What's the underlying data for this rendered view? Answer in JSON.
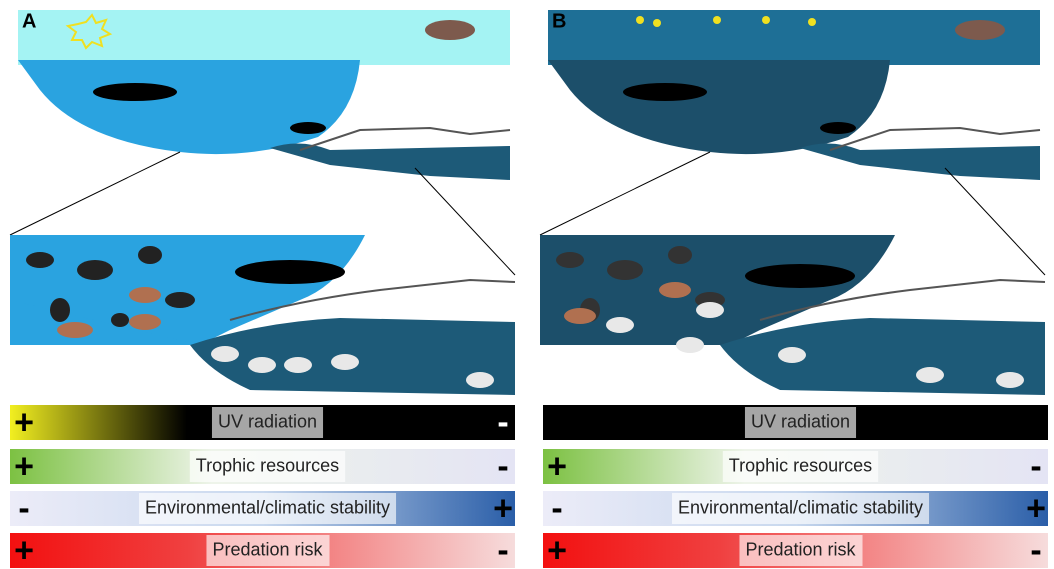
{
  "panels": [
    {
      "label": "A",
      "bars": [
        {
          "label": "UV radiation",
          "left": "+",
          "right": "-"
        },
        {
          "label": "Trophic resources",
          "left": "+",
          "right": "-"
        },
        {
          "label": "Environmental/climatic stability",
          "left": "-",
          "right": "+"
        },
        {
          "label": "Predation risk",
          "left": "+",
          "right": "-"
        }
      ]
    },
    {
      "label": "B",
      "bars": [
        {
          "label": "UV radiation"
        },
        {
          "label": "Trophic resources",
          "left": "+",
          "right": "-"
        },
        {
          "label": "Environmental/climatic stability",
          "left": "-",
          "right": "+"
        },
        {
          "label": "Predation risk",
          "left": "+",
          "right": "-"
        }
      ]
    }
  ]
}
